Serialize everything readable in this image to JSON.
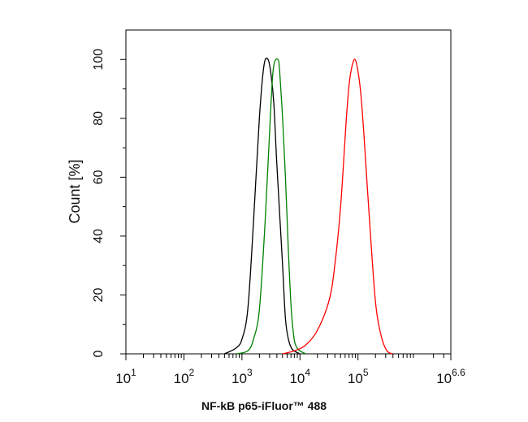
{
  "chart_data": {
    "type": "line",
    "title": "",
    "xlabel": "NF-kB p65-iFluor™ 488",
    "ylabel": "Count [%]",
    "x_scale": "log",
    "xlim": [
      1,
      6.6
    ],
    "ylim": [
      0,
      110
    ],
    "x_ticks": [
      {
        "value": 1,
        "base": "10",
        "exp": "1"
      },
      {
        "value": 2,
        "base": "10",
        "exp": "2"
      },
      {
        "value": 3,
        "base": "10",
        "exp": "3"
      },
      {
        "value": 4,
        "base": "10",
        "exp": "4"
      },
      {
        "value": 5,
        "base": "10",
        "exp": "5"
      },
      {
        "value": 6.6,
        "base": "10",
        "exp": "6.6"
      }
    ],
    "y_ticks": [
      0,
      20,
      40,
      60,
      80,
      100
    ],
    "grid": false,
    "legend": "none",
    "series": [
      {
        "color": "#000000",
        "x_log10": [
          2.7,
          2.9,
          3.0,
          3.1,
          3.2,
          3.3,
          3.38,
          3.45,
          3.5,
          3.55,
          3.6,
          3.7,
          3.75,
          3.8,
          3.85,
          3.9,
          4.0
        ],
        "y": [
          0,
          2,
          5,
          15,
          45,
          80,
          98,
          100,
          95,
          85,
          65,
          30,
          12,
          5,
          2,
          1,
          0
        ]
      },
      {
        "color": "#008000",
        "x_log10": [
          2.9,
          3.1,
          3.2,
          3.3,
          3.4,
          3.5,
          3.55,
          3.62,
          3.65,
          3.7,
          3.75,
          3.8,
          3.85,
          3.9,
          3.95,
          4.0,
          4.1
        ],
        "y": [
          0,
          1,
          5,
          15,
          45,
          85,
          98,
          100,
          96,
          80,
          60,
          35,
          15,
          5,
          2,
          1,
          0
        ]
      },
      {
        "color": "#ff0000",
        "x_log10": [
          3.7,
          3.9,
          4.1,
          4.3,
          4.5,
          4.6,
          4.7,
          4.8,
          4.85,
          4.9,
          4.95,
          5.0,
          5.05,
          5.1,
          5.2,
          5.3,
          5.4,
          5.5,
          5.6
        ],
        "y": [
          0,
          1,
          3,
          8,
          18,
          30,
          50,
          80,
          92,
          98,
          100,
          96,
          88,
          75,
          45,
          18,
          6,
          1,
          0
        ]
      }
    ]
  }
}
